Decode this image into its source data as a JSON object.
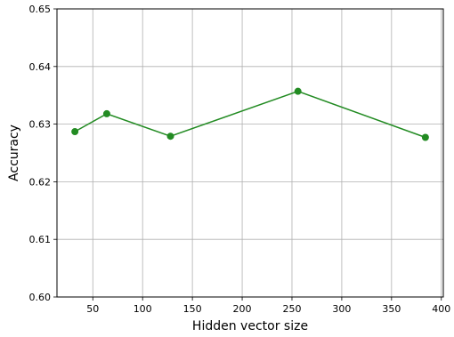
{
  "chart_data": {
    "type": "line",
    "xlabel": "Hidden vector size",
    "ylabel": "Accuracy",
    "xlim": [
      14,
      402
    ],
    "ylim": [
      0.6,
      0.65
    ],
    "xticks": [
      50,
      100,
      150,
      200,
      250,
      300,
      350,
      400
    ],
    "xtick_labels": [
      "50",
      "100",
      "150",
      "200",
      "250",
      "300",
      "350",
      "400"
    ],
    "yticks": [
      0.6,
      0.61,
      0.62,
      0.63,
      0.64,
      0.65
    ],
    "ytick_labels": [
      "0.60",
      "0.61",
      "0.62",
      "0.63",
      "0.64",
      "0.65"
    ],
    "grid": true,
    "series": [
      {
        "color": "#228b22",
        "marker": "circle",
        "x": [
          32,
          64,
          128,
          256,
          384
        ],
        "y": [
          0.6287,
          0.6318,
          0.6279,
          0.6357,
          0.6277
        ]
      }
    ]
  }
}
